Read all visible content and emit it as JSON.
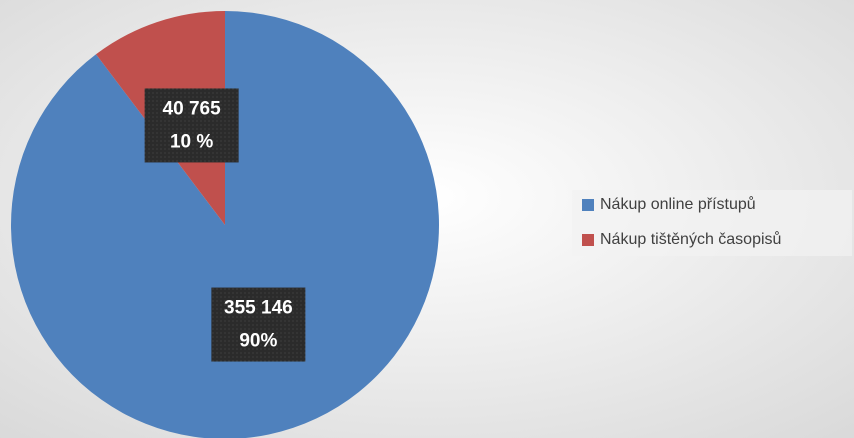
{
  "chart_data": {
    "type": "pie",
    "categories": [
      "Nákup online přístupů",
      "Nákup tištěných časopisů"
    ],
    "values": [
      355146,
      40765
    ],
    "value_labels": [
      "355 146",
      "40 765"
    ],
    "percent_labels": [
      "90%",
      "10 %"
    ],
    "colors": [
      "#4f81bd",
      "#c0504d"
    ],
    "legend": "right"
  }
}
